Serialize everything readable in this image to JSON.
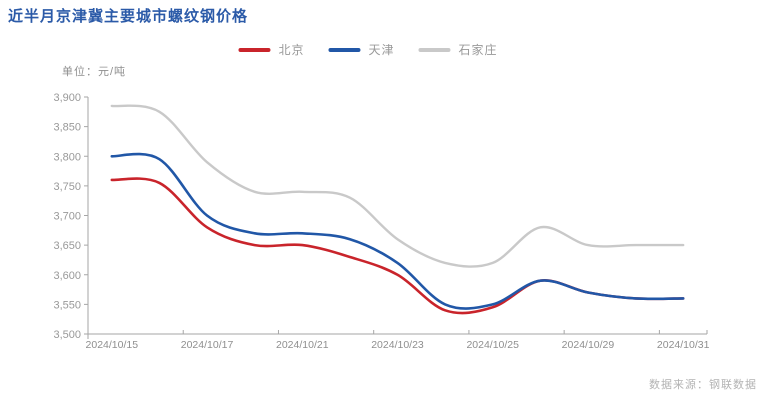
{
  "title": "近半月京津冀主要城市螺纹钢价格",
  "unit_label": "单位：元/吨",
  "source": "数据来源：钢联数据",
  "colors": {
    "title": "#2b5aa8",
    "axis": "#a6a6a6",
    "tick_text": "#999999",
    "x_label_text": "#8f8f8f",
    "beijing": "#c9242b",
    "tianjin": "#2157a7",
    "shijiazhuang": "#c9c9c9"
  },
  "chart_data": {
    "type": "line",
    "title": "近半月京津冀主要城市螺纹钢价格",
    "ylabel": "单位：元/吨",
    "x": [
      "2024/10/15",
      "2024/10/16",
      "2024/10/17",
      "2024/10/18",
      "2024/10/21",
      "2024/10/22",
      "2024/10/23",
      "2024/10/24",
      "2024/10/25",
      "2024/10/28",
      "2024/10/29",
      "2024/10/30",
      "2024/10/31"
    ],
    "x_tick_labels": [
      "2024/10/15",
      "2024/10/17",
      "2024/10/21",
      "2024/10/23",
      "2024/10/25",
      "2024/10/29",
      "2024/10/31"
    ],
    "x_tick_indices": [
      0,
      2,
      4,
      6,
      8,
      10,
      12
    ],
    "x_tick_boundaries": [
      0,
      2,
      4,
      6,
      8,
      10,
      12,
      13
    ],
    "ylim": [
      3500,
      3900
    ],
    "ytick_step": 50,
    "ytick_labels": [
      "3,500",
      "3,550",
      "3,600",
      "3,650",
      "3,700",
      "3,750",
      "3,800",
      "3,850",
      "3,900"
    ],
    "grid": "off",
    "legend_position": "top",
    "series": [
      {
        "id": "beijing",
        "name": "北京",
        "color": "#c9242b",
        "values": [
          3760,
          3755,
          3680,
          3650,
          3650,
          3630,
          3600,
          3540,
          3545,
          3590,
          3570,
          3560,
          3560
        ]
      },
      {
        "id": "tianjin",
        "name": "天津",
        "color": "#2157a7",
        "values": [
          3800,
          3795,
          3700,
          3670,
          3670,
          3660,
          3620,
          3550,
          3550,
          3590,
          3570,
          3560,
          3560
        ]
      },
      {
        "id": "shijiazhuang",
        "name": "石家庄",
        "color": "#c9c9c9",
        "values": [
          3885,
          3875,
          3790,
          3740,
          3740,
          3730,
          3660,
          3620,
          3620,
          3680,
          3650,
          3650,
          3650
        ]
      }
    ]
  }
}
